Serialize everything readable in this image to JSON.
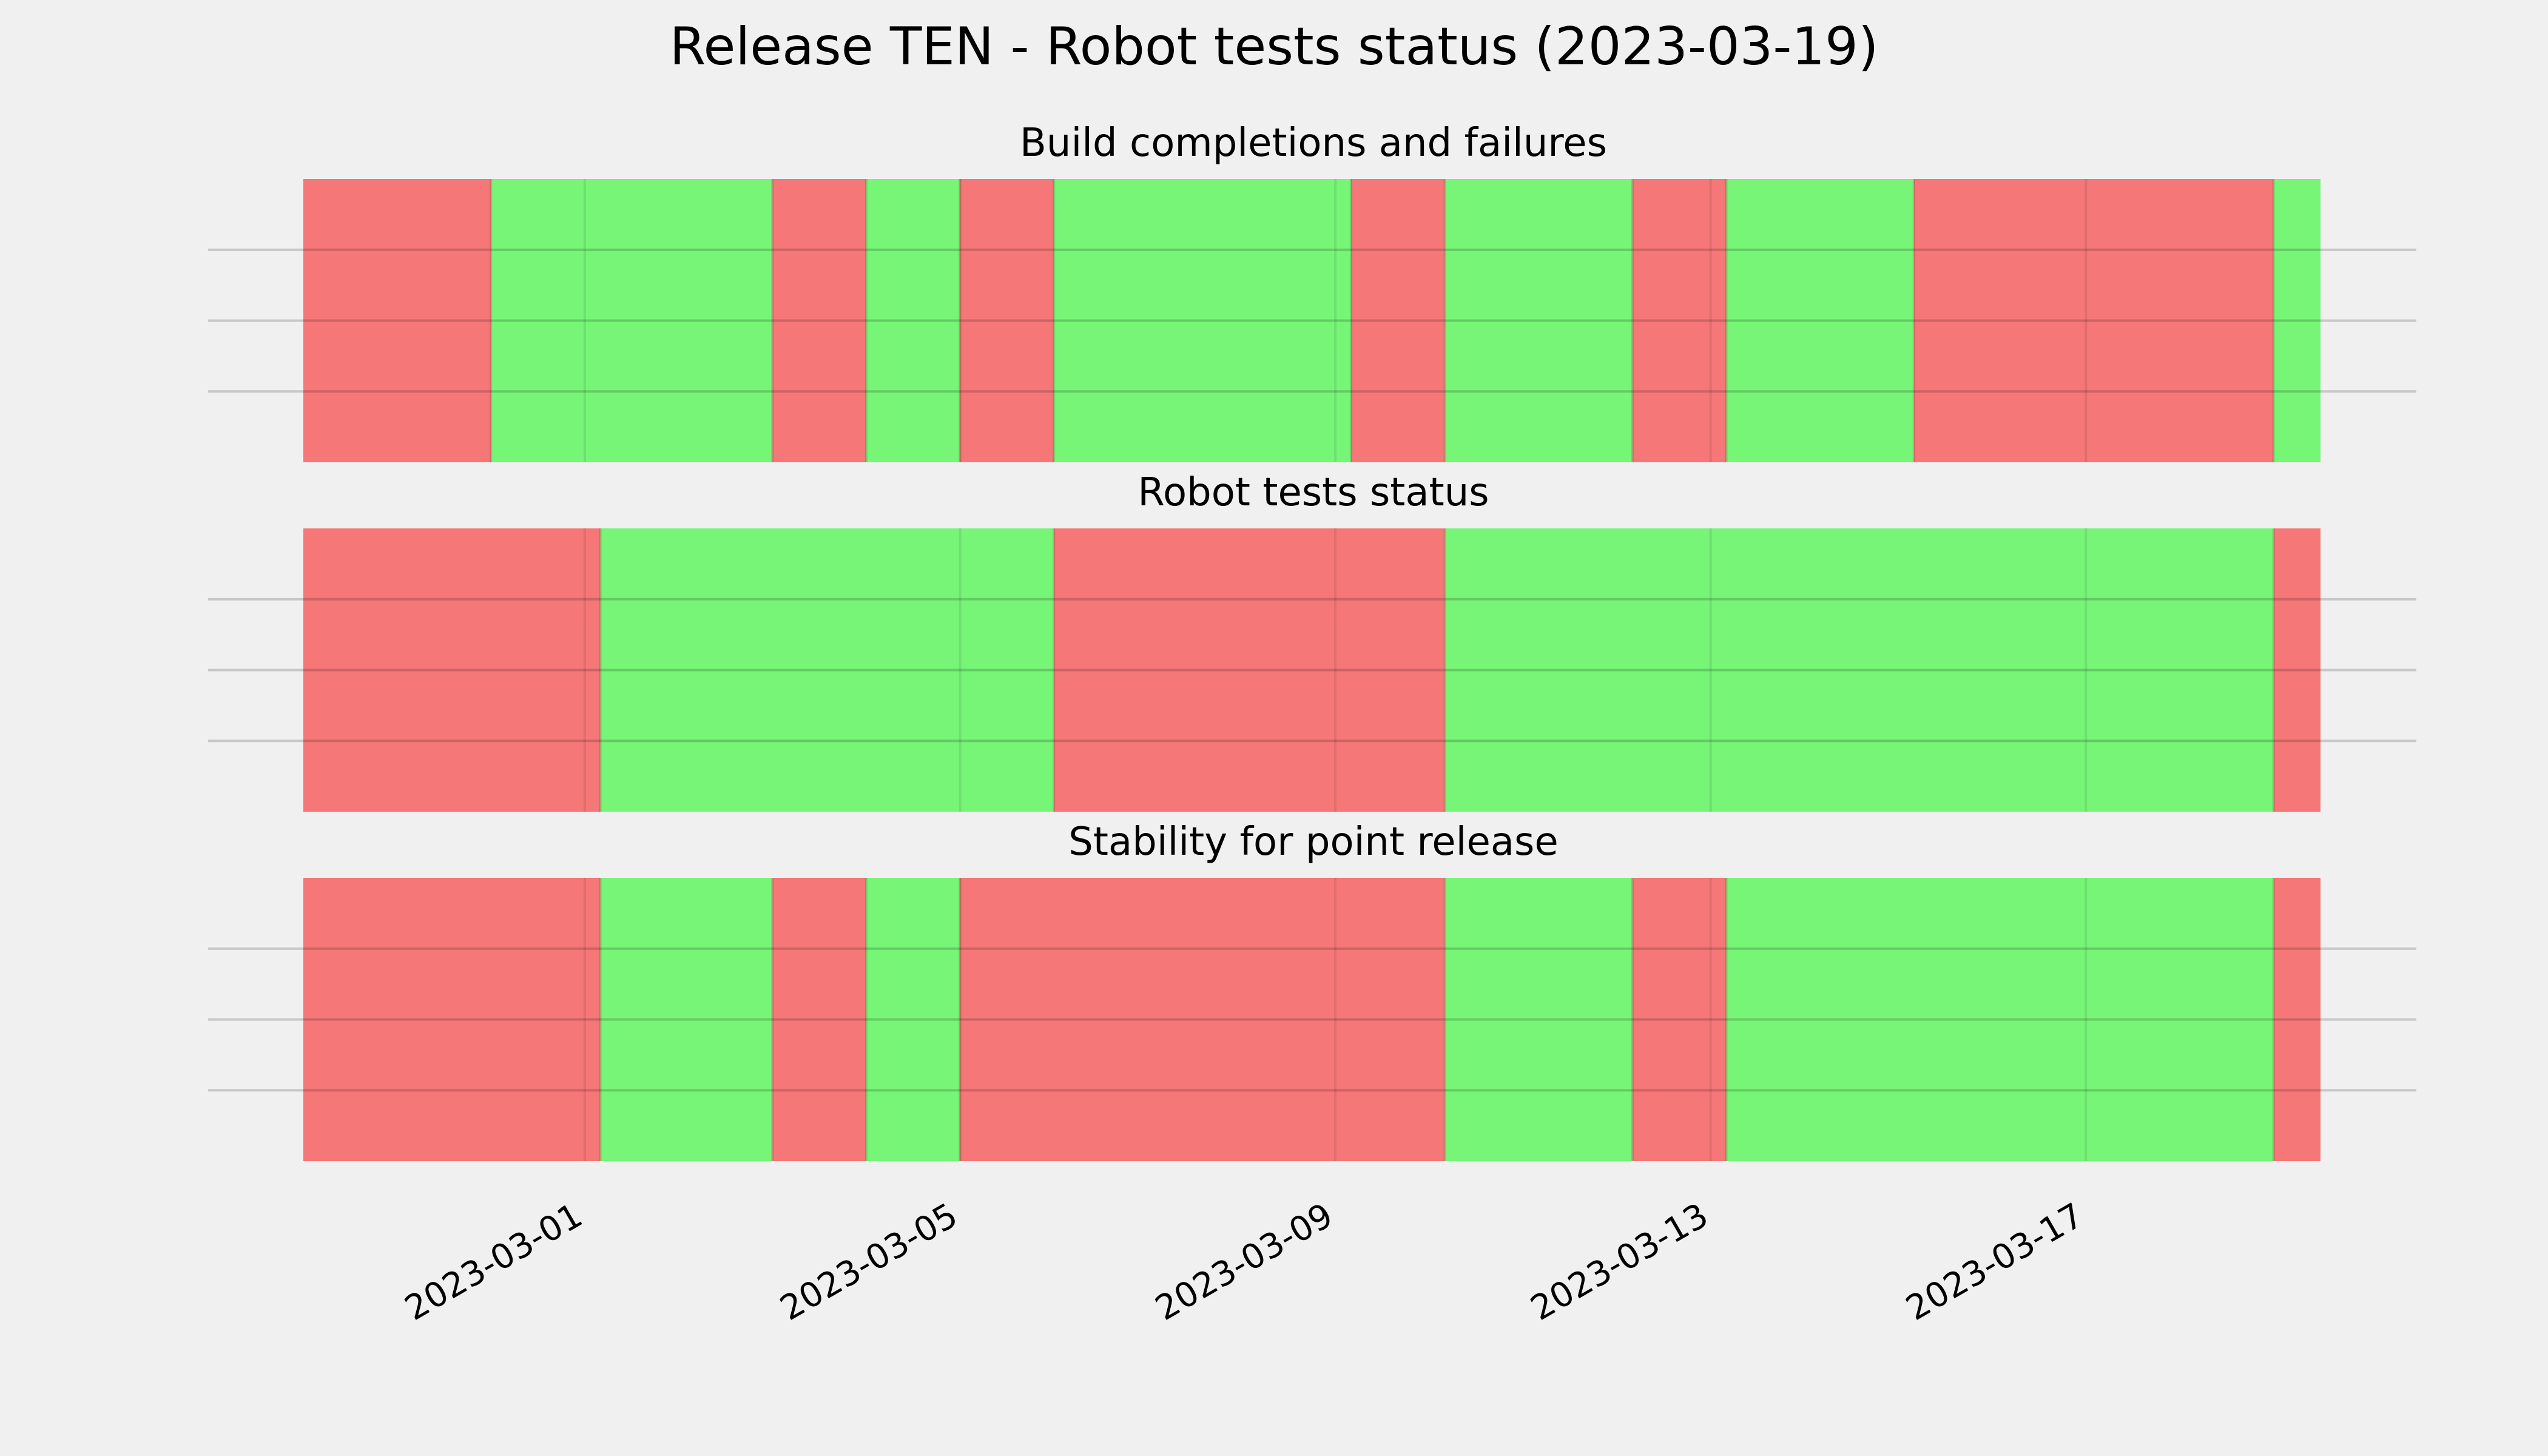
{
  "chart_data": {
    "type": "timeline",
    "title": "Release TEN - Robot tests status (2023-03-19)",
    "x_range": [
      "2023-02-26",
      "2023-03-19T12:00"
    ],
    "x_ticks": [
      "2023-03-01",
      "2023-03-05",
      "2023-03-09",
      "2023-03-13",
      "2023-03-17"
    ],
    "grid": true,
    "colors": {
      "pass": "#77f577",
      "fail": "#f57777"
    },
    "panels": [
      {
        "title": "Build completions and failures",
        "segments": [
          {
            "start": "2023-02-26",
            "end": "2023-02-28",
            "status": "fail"
          },
          {
            "start": "2023-02-28",
            "end": "2023-03-03",
            "status": "pass"
          },
          {
            "start": "2023-03-03",
            "end": "2023-03-04",
            "status": "fail"
          },
          {
            "start": "2023-03-04",
            "end": "2023-03-05",
            "status": "pass"
          },
          {
            "start": "2023-03-05",
            "end": "2023-03-06",
            "status": "fail"
          },
          {
            "start": "2023-03-06",
            "end": "2023-03-09T04:00",
            "status": "pass"
          },
          {
            "start": "2023-03-09T04:00",
            "end": "2023-03-10T04:00",
            "status": "fail"
          },
          {
            "start": "2023-03-10T04:00",
            "end": "2023-03-12T04:00",
            "status": "pass"
          },
          {
            "start": "2023-03-12T04:00",
            "end": "2023-03-13T04:00",
            "status": "fail"
          },
          {
            "start": "2023-03-13T04:00",
            "end": "2023-03-15T04:00",
            "status": "pass"
          },
          {
            "start": "2023-03-15T04:00",
            "end": "2023-03-19",
            "status": "fail"
          },
          {
            "start": "2023-03-19",
            "end": "2023-03-19T12:00",
            "status": "pass"
          }
        ]
      },
      {
        "title": "Robot tests status",
        "segments": [
          {
            "start": "2023-02-26",
            "end": "2023-03-01T04:00",
            "status": "fail"
          },
          {
            "start": "2023-03-01T04:00",
            "end": "2023-03-06",
            "status": "pass"
          },
          {
            "start": "2023-03-06",
            "end": "2023-03-10T04:00",
            "status": "fail"
          },
          {
            "start": "2023-03-10T04:00",
            "end": "2023-03-19",
            "status": "pass"
          },
          {
            "start": "2023-03-19",
            "end": "2023-03-19T12:00",
            "status": "fail"
          }
        ]
      },
      {
        "title": "Stability for point release",
        "segments": [
          {
            "start": "2023-02-26",
            "end": "2023-03-01T04:00",
            "status": "fail"
          },
          {
            "start": "2023-03-01T04:00",
            "end": "2023-03-03",
            "status": "pass"
          },
          {
            "start": "2023-03-03",
            "end": "2023-03-04",
            "status": "fail"
          },
          {
            "start": "2023-03-04",
            "end": "2023-03-05",
            "status": "pass"
          },
          {
            "start": "2023-03-05",
            "end": "2023-03-10T04:00",
            "status": "fail"
          },
          {
            "start": "2023-03-10T04:00",
            "end": "2023-03-12T04:00",
            "status": "pass"
          },
          {
            "start": "2023-03-12T04:00",
            "end": "2023-03-13T04:00",
            "status": "fail"
          },
          {
            "start": "2023-03-13T04:00",
            "end": "2023-03-19",
            "status": "pass"
          },
          {
            "start": "2023-03-19",
            "end": "2023-03-19T12:00",
            "status": "fail"
          }
        ]
      }
    ]
  }
}
